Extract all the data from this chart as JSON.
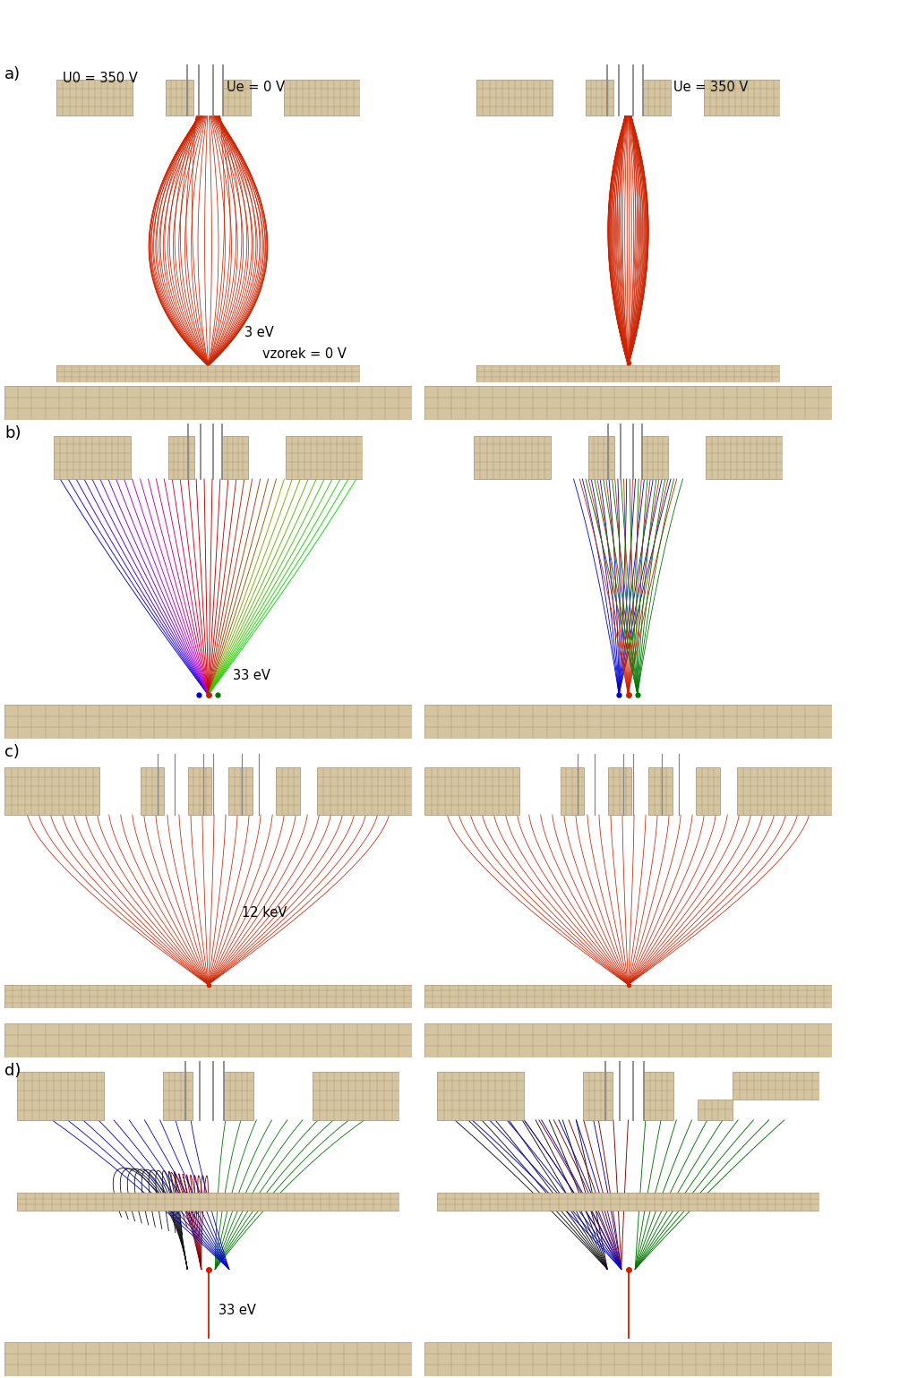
{
  "background_color": "#ffffff",
  "grid_fc": "#d4c4a0",
  "grid_ec": "#a09070",
  "red": "#cc2200",
  "blue": "#0000cc",
  "green": "#007700",
  "black": "#111111",
  "darkred": "#880000",
  "purple": "#6600aa",
  "label_U0": "U0 = 350 V",
  "label_Ue0": "Ue = 0 V",
  "label_Ue350": "Ue = 350 V",
  "label_vzorek": "vzorek = 0 V",
  "label_3eV": "3 eV",
  "label_33eV": "33 eV",
  "label_12keV": "12 keV",
  "fs": 10.5
}
